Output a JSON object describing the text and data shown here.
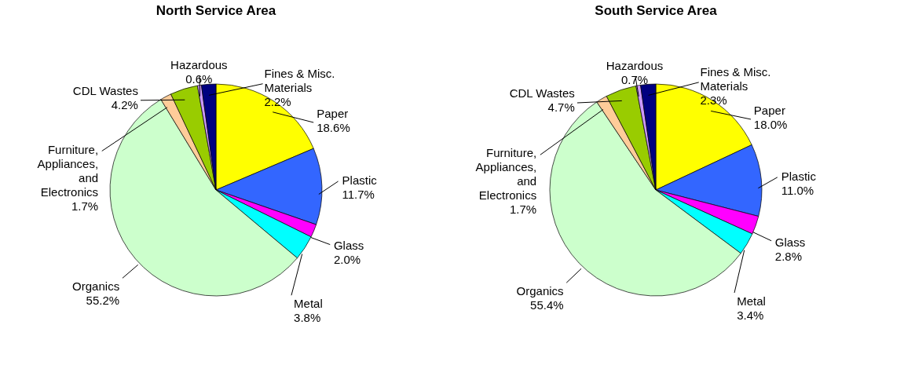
{
  "chart_data": [
    {
      "type": "pie",
      "title": "North Service Area",
      "categories": [
        "Paper",
        "Plastic",
        "Glass",
        "Metal",
        "Organics",
        "Furniture, Appliances, and Electronics",
        "CDL Wastes",
        "Hazardous",
        "Fines & Misc. Materials"
      ],
      "values": [
        18.6,
        11.7,
        2.0,
        3.8,
        55.2,
        1.7,
        4.2,
        0.6,
        2.2
      ],
      "value_labels": [
        "18.6%",
        "11.7%",
        "2.0%",
        "3.8%",
        "55.2%",
        "1.7%",
        "4.2%",
        "0.6%",
        "2.2%"
      ],
      "colors": [
        "#ffff00",
        "#3366ff",
        "#ff00ff",
        "#00ffff",
        "#ccffcc",
        "#ffcc99",
        "#99cc00",
        "#cc99ff",
        "#000080"
      ]
    },
    {
      "type": "pie",
      "title": "South Service Area",
      "categories": [
        "Paper",
        "Plastic",
        "Glass",
        "Metal",
        "Organics",
        "Furniture, Appliances, and Electronics",
        "CDL Wastes",
        "Hazardous",
        "Fines & Misc. Materials"
      ],
      "values": [
        18.0,
        11.0,
        2.8,
        3.4,
        55.4,
        1.7,
        4.7,
        0.7,
        2.3
      ],
      "value_labels": [
        "18.0%",
        "11.0%",
        "2.8%",
        "3.4%",
        "55.4%",
        "1.7%",
        "4.7%",
        "0.7%",
        "2.3%"
      ],
      "colors": [
        "#ffff00",
        "#3366ff",
        "#ff00ff",
        "#00ffff",
        "#ccffcc",
        "#ffcc99",
        "#99cc00",
        "#cc99ff",
        "#000080"
      ]
    }
  ]
}
